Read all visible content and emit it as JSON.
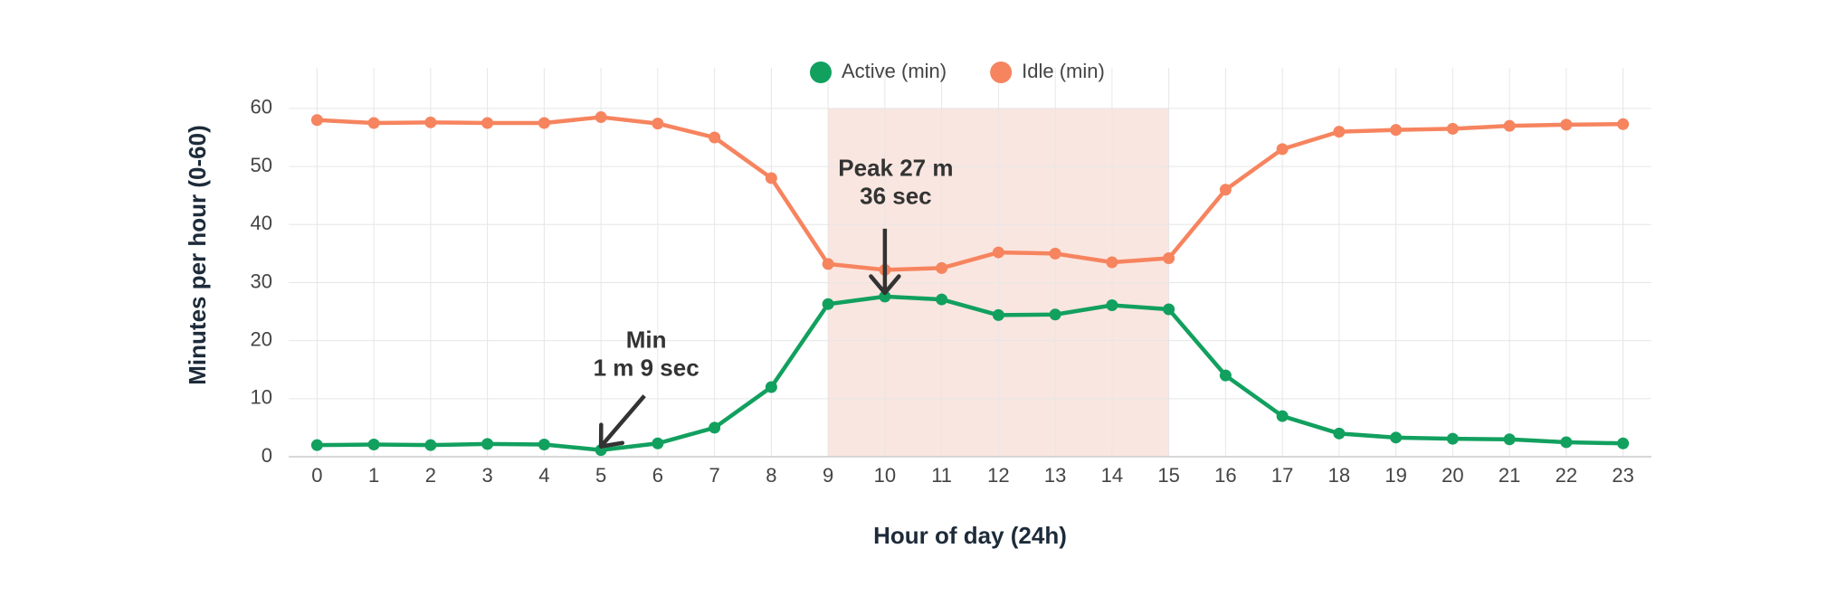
{
  "chart_data": {
    "type": "line",
    "x_label": "Hour of day (24h)",
    "y_label": "Minutes per hour (0-60)",
    "x": [
      0,
      1,
      2,
      3,
      4,
      5,
      6,
      7,
      8,
      9,
      10,
      11,
      12,
      13,
      14,
      15,
      16,
      17,
      18,
      19,
      20,
      21,
      22,
      23
    ],
    "series": [
      {
        "name": "Active (min)",
        "color": "#12a05f",
        "values": [
          2.0,
          2.1,
          2.0,
          2.2,
          2.1,
          1.15,
          2.3,
          5.0,
          12.0,
          26.3,
          27.6,
          27.1,
          24.4,
          24.5,
          26.1,
          25.4,
          14.0,
          7.0,
          4.0,
          3.3,
          3.1,
          3.0,
          2.5,
          2.3
        ]
      },
      {
        "name": "Idle (min)",
        "color": "#f6845f",
        "values": [
          58.0,
          57.5,
          57.6,
          57.5,
          57.5,
          58.5,
          57.4,
          55.0,
          48.0,
          33.2,
          32.2,
          32.5,
          35.2,
          35.0,
          33.5,
          34.2,
          46.0,
          53.0,
          56.0,
          56.3,
          56.5,
          57.0,
          57.2,
          57.3
        ]
      }
    ],
    "highlight": {
      "x": [
        9,
        15
      ],
      "color": "#f9e2da"
    },
    "annotations": [
      {
        "lines": [
          "Peak 27 m",
          "36 sec"
        ],
        "x": 10,
        "y": 27.6
      },
      {
        "lines": [
          "Min",
          "1 m 9 sec"
        ],
        "x": 5,
        "y": 1.15
      }
    ],
    "xlim": [
      -0.5,
      23.5
    ],
    "xticks": [
      0,
      1,
      2,
      3,
      4,
      5,
      6,
      7,
      8,
      9,
      10,
      11,
      12,
      13,
      14,
      15,
      16,
      17,
      18,
      19,
      20,
      21,
      22,
      23
    ],
    "ylim": [
      0,
      67
    ],
    "yticks": [
      0,
      10,
      20,
      30,
      40,
      50,
      60
    ],
    "grid": true,
    "legend": "top"
  }
}
